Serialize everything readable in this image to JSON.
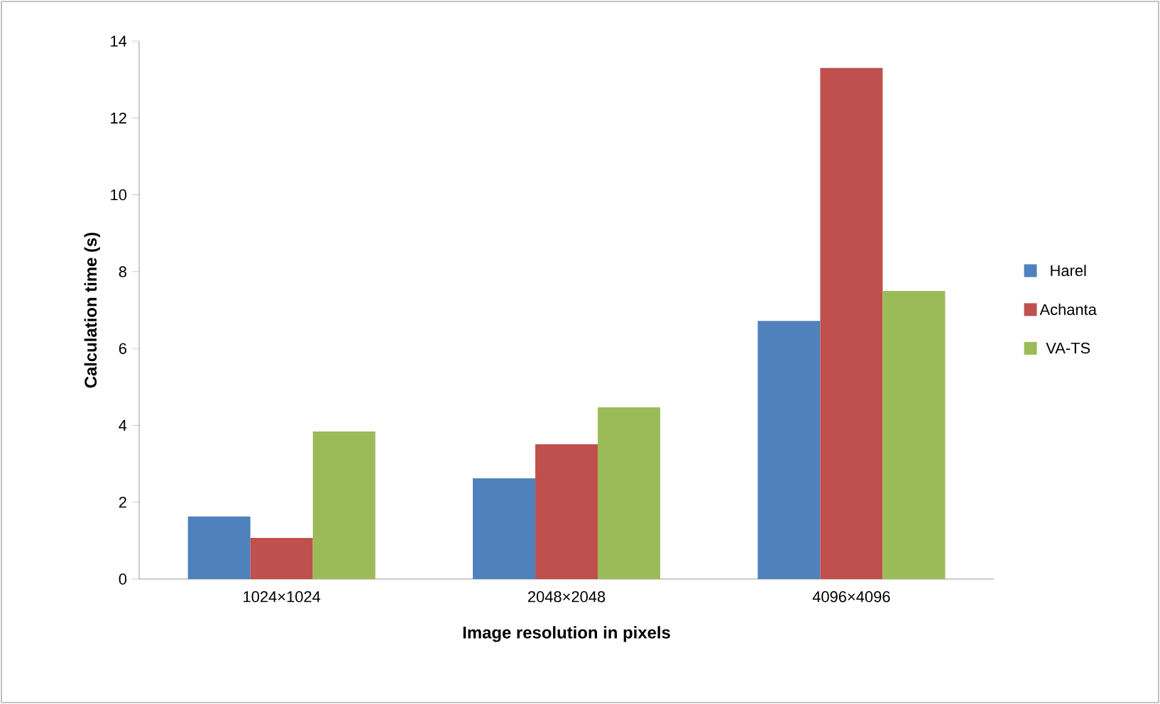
{
  "chart_data": {
    "type": "bar",
    "xlabel": "Image resolution in pixels",
    "ylabel": "Calculation time (s)",
    "categories": [
      "1024×1024",
      "2048×2048",
      "4096×4096"
    ],
    "series": [
      {
        "name": "Harel",
        "color": "#4f81bd",
        "values": [
          1.63,
          2.62,
          6.72
        ]
      },
      {
        "name": "Achanta",
        "color": "#c0504d",
        "values": [
          1.07,
          3.51,
          13.3
        ]
      },
      {
        "name": "VA-TS",
        "color": "#9bbb59",
        "values": [
          3.84,
          4.47,
          7.5
        ]
      }
    ],
    "ylim": [
      0,
      14
    ],
    "yticks": [
      0,
      2,
      4,
      6,
      8,
      10,
      12,
      14
    ],
    "legend": "right"
  }
}
